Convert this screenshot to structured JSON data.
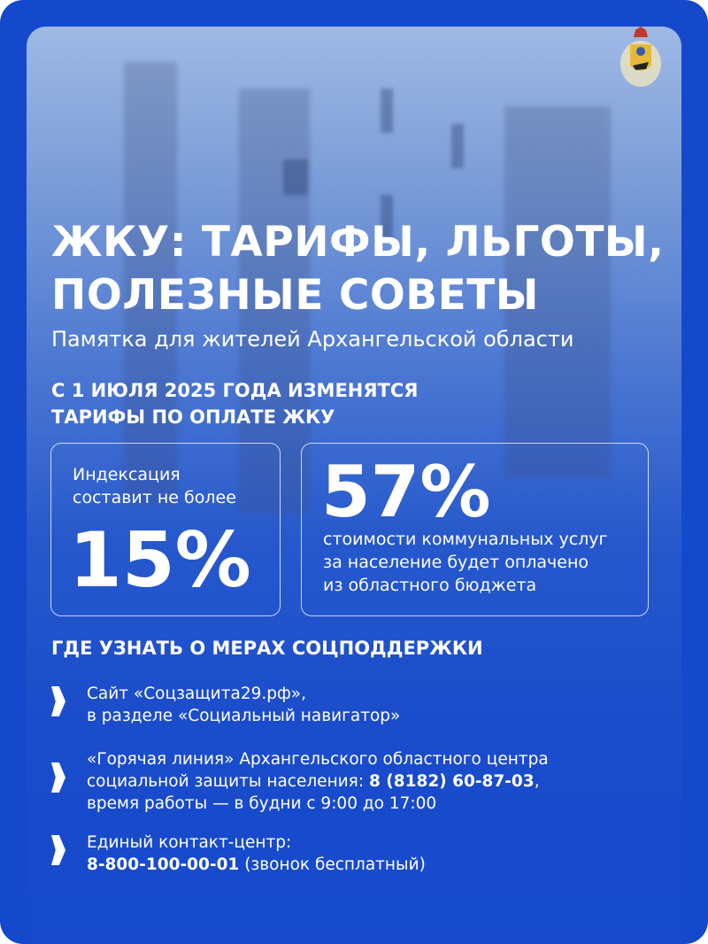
{
  "title_lines": [
    "ЖКУ: ТАРИФЫ, ЛЬГОТЫ,",
    "ПОЛЕЗНЫЕ СОВЕТЫ"
  ],
  "subtitle": "Памятка для жителей Архангельской области",
  "headline_lines": [
    "С 1 ИЮЛЯ 2025 ГОДА ИЗМЕНЯТСЯ",
    "ТАРИФЫ ПО ОПЛАТЕ ЖКУ"
  ],
  "indexation": {
    "label_lines": [
      "Индексация",
      "составит не более"
    ],
    "value": "15%"
  },
  "subsidy": {
    "value": "57%",
    "label_lines": [
      "стоимости коммунальных услуг",
      "за население будет оплачено",
      "из областного бюджета"
    ]
  },
  "support_heading": "ГДЕ УЗНАТЬ О МЕРАХ СОЦПОДДЕРЖКИ",
  "items": [
    {
      "line1": "Сайт «Соцзащита29.рф»,",
      "line2": "в разделе «Социальный навигатор»"
    },
    {
      "line1": "«Горячая линия» Архангельского областного центра",
      "line2_pre": "социальной защиты населения: ",
      "phone": "8 (8182) 60-87-03",
      "line2_post": ",",
      "line3": "время работы — в будни с 9:00 до 17:00"
    },
    {
      "line1": "Единый контакт-центр:",
      "phone": "8-800-100-00-01",
      "line2_post": " (звонок бесплатный)"
    }
  ],
  "colors": {
    "background": "#1549cc",
    "text": "#ffffff"
  },
  "icons": {
    "emblem": "arkhangelsk-oblast-coat-of-arms",
    "bullet": "chevron-right-icon"
  }
}
